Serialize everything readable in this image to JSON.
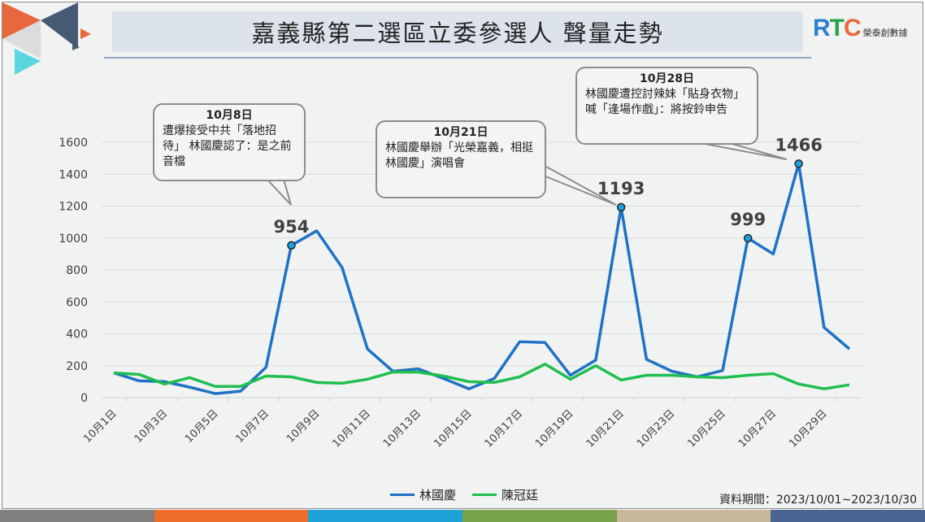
{
  "title": "嘉義縣第二選區立委參選人 聲量走勢",
  "logo": {
    "letters": "RTC",
    "sub": "榮泰創數據"
  },
  "period": "資料期間：2023/10/01~2023/10/30",
  "callouts": [
    {
      "title": "10月8日",
      "text": "遭爆接受中共「落地招待」 林國慶認了：是之前音檔"
    },
    {
      "title": "10月21日",
      "text": "林國慶舉辦「光榮嘉義，相挺林國慶」演唱會"
    },
    {
      "title": "10月28日",
      "text": "林國慶遭控討辣妹「貼身衣物」喊「逢場作戲」：將按鈴申告"
    }
  ],
  "chart_data": {
    "type": "line",
    "title": "嘉義縣第二選區立委參選人 聲量走勢",
    "x": [
      "10月1日",
      "10月2日",
      "10月3日",
      "10月4日",
      "10月5日",
      "10月6日",
      "10月7日",
      "10月8日",
      "10月9日",
      "10月10日",
      "10月11日",
      "10月12日",
      "10月13日",
      "10月14日",
      "10月15日",
      "10月16日",
      "10月17日",
      "10月18日",
      "10月19日",
      "10月20日",
      "10月21日",
      "10月22日",
      "10月23日",
      "10月24日",
      "10月25日",
      "10月26日",
      "10月27日",
      "10月28日",
      "10月29日",
      "10月30日"
    ],
    "xtick_labels": [
      "10月1日",
      "10月3日",
      "10月5日",
      "10月7日",
      "10月9日",
      "10月11日",
      "10月13日",
      "10月15日",
      "10月17日",
      "10月19日",
      "10月21日",
      "10月23日",
      "10月25日",
      "10月27日",
      "10月29日"
    ],
    "ylim": [
      0,
      1600
    ],
    "yticks": [
      0,
      200,
      400,
      600,
      800,
      1000,
      1200,
      1400,
      1600
    ],
    "grid": true,
    "legend": "bottom",
    "series": [
      {
        "name": "林國慶",
        "color": "#1f72c4",
        "values": [
          155,
          105,
          100,
          65,
          25,
          40,
          190,
          954,
          1045,
          815,
          305,
          165,
          180,
          120,
          55,
          120,
          350,
          345,
          140,
          235,
          1193,
          240,
          165,
          130,
          170,
          999,
          900,
          1466,
          440,
          305
        ],
        "labeled": [
          7,
          20,
          25,
          27
        ]
      },
      {
        "name": "陳冠廷",
        "color": "#1fbf4e",
        "values": [
          155,
          145,
          85,
          125,
          70,
          70,
          135,
          130,
          95,
          90,
          115,
          160,
          160,
          135,
          100,
          95,
          130,
          210,
          115,
          200,
          110,
          140,
          140,
          130,
          125,
          140,
          150,
          85,
          55,
          80
        ]
      }
    ]
  },
  "colors": {
    "bottom_bar": [
      "#7f7f7f",
      "#ef6c2a",
      "#1fa2d8",
      "#78a24a",
      "#c9b79a",
      "#4a6491"
    ]
  }
}
